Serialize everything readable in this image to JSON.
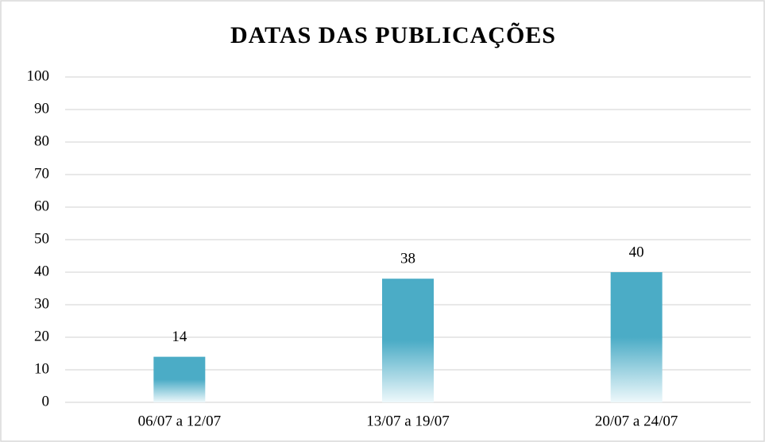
{
  "chart_data": {
    "type": "bar",
    "title": "DATAS DAS PUBLICAÇÕES",
    "categories": [
      "06/07 a 12/07",
      "13/07 a 19/07",
      "20/07 a 24/07"
    ],
    "values": [
      14,
      38,
      40
    ],
    "color": "#4bacc6",
    "ylim": [
      0,
      100
    ],
    "yticks": [
      0,
      10,
      20,
      30,
      40,
      50,
      60,
      70,
      80,
      90,
      100
    ],
    "grid": true
  }
}
